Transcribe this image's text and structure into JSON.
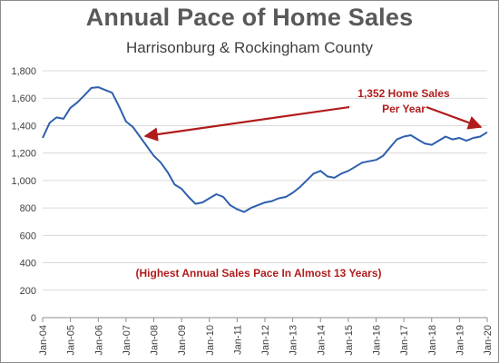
{
  "chart_data": {
    "type": "line",
    "title": "Annual Pace of Home Sales",
    "subtitle": "Harrisonburg & Rockingham County",
    "xlabel": "",
    "ylabel": "",
    "ylim": [
      0,
      1800
    ],
    "yticks": [
      0,
      200,
      400,
      600,
      800,
      1000,
      1200,
      1400,
      1600,
      1800
    ],
    "xtick_labels": [
      "Jan-04",
      "Jan-05",
      "Jan-06",
      "Jan-07",
      "Jan-08",
      "Jan-09",
      "Jan-10",
      "Jan-11",
      "Jan-12",
      "Jan-13",
      "Jan-14",
      "Jan-15",
      "Jan-16",
      "Jan-17",
      "Jan-18",
      "Jan-19",
      "Jan-20"
    ],
    "grid": true,
    "line_color": "#2e5fad",
    "annotation_color": "#b01c1c",
    "annotations": {
      "callout_line1": "1,352 Home Sales",
      "callout_line2": "Per Year",
      "note": "(Highest Annual Sales Pace In Almost 13 Years)"
    },
    "series": [
      {
        "points": [
          [
            "2004-01",
            1310
          ],
          [
            "2004-04",
            1420
          ],
          [
            "2004-07",
            1460
          ],
          [
            "2004-10",
            1450
          ],
          [
            "2005-01",
            1530
          ],
          [
            "2005-04",
            1570
          ],
          [
            "2005-07",
            1620
          ],
          [
            "2005-10",
            1675
          ],
          [
            "2006-01",
            1680
          ],
          [
            "2006-04",
            1660
          ],
          [
            "2006-07",
            1640
          ],
          [
            "2006-10",
            1540
          ],
          [
            "2007-01",
            1430
          ],
          [
            "2007-04",
            1390
          ],
          [
            "2007-07",
            1320
          ],
          [
            "2007-10",
            1250
          ],
          [
            "2008-01",
            1180
          ],
          [
            "2008-04",
            1130
          ],
          [
            "2008-07",
            1060
          ],
          [
            "2008-10",
            970
          ],
          [
            "2009-01",
            940
          ],
          [
            "2009-04",
            880
          ],
          [
            "2009-07",
            830
          ],
          [
            "2009-10",
            840
          ],
          [
            "2010-01",
            870
          ],
          [
            "2010-04",
            900
          ],
          [
            "2010-07",
            880
          ],
          [
            "2010-10",
            820
          ],
          [
            "2011-01",
            790
          ],
          [
            "2011-04",
            770
          ],
          [
            "2011-07",
            800
          ],
          [
            "2011-10",
            820
          ],
          [
            "2012-01",
            840
          ],
          [
            "2012-04",
            850
          ],
          [
            "2012-07",
            870
          ],
          [
            "2012-10",
            880
          ],
          [
            "2013-01",
            910
          ],
          [
            "2013-04",
            950
          ],
          [
            "2013-07",
            1000
          ],
          [
            "2013-10",
            1050
          ],
          [
            "2014-01",
            1070
          ],
          [
            "2014-04",
            1030
          ],
          [
            "2014-07",
            1020
          ],
          [
            "2014-10",
            1050
          ],
          [
            "2015-01",
            1070
          ],
          [
            "2015-04",
            1100
          ],
          [
            "2015-07",
            1130
          ],
          [
            "2015-10",
            1140
          ],
          [
            "2016-01",
            1150
          ],
          [
            "2016-04",
            1180
          ],
          [
            "2016-07",
            1240
          ],
          [
            "2016-10",
            1300
          ],
          [
            "2017-01",
            1320
          ],
          [
            "2017-04",
            1330
          ],
          [
            "2017-07",
            1300
          ],
          [
            "2017-10",
            1270
          ],
          [
            "2018-01",
            1260
          ],
          [
            "2018-04",
            1290
          ],
          [
            "2018-07",
            1320
          ],
          [
            "2018-10",
            1300
          ],
          [
            "2019-01",
            1310
          ],
          [
            "2019-04",
            1290
          ],
          [
            "2019-07",
            1310
          ],
          [
            "2019-10",
            1320
          ],
          [
            "2020-01",
            1352
          ]
        ]
      }
    ]
  }
}
